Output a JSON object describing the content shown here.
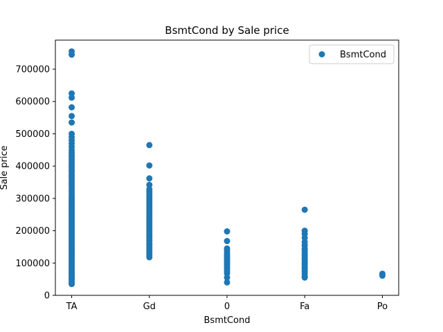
{
  "chart_data": {
    "type": "scatter",
    "title": "BsmtCond by Sale price",
    "xlabel": "BsmtCond",
    "ylabel": "Sale price",
    "categories": [
      "TA",
      "Gd",
      "0",
      "Fa",
      "Po"
    ],
    "ylim": [
      0,
      790000
    ],
    "yticks": [
      0,
      100000,
      200000,
      300000,
      400000,
      500000,
      600000,
      700000
    ],
    "grid": false,
    "legend": {
      "placement": "top-right",
      "entries": [
        "BsmtCond"
      ]
    },
    "color": "#1f77b4",
    "series": [
      {
        "name": "BsmtCond",
        "points": [
          {
            "x": "TA",
            "values": [
              35000,
              38000,
              42000,
              48000,
              52000,
              57000,
              62000,
              67000,
              72000,
              77000,
              82000,
              87000,
              92000,
              97000,
              102000,
              107000,
              112000,
              117000,
              122000,
              127000,
              132000,
              137000,
              142000,
              147000,
              152000,
              157000,
              162000,
              167000,
              172000,
              177000,
              182000,
              187000,
              192000,
              197000,
              202000,
              207000,
              212000,
              217000,
              222000,
              227000,
              232000,
              237000,
              242000,
              247000,
              252000,
              257000,
              262000,
              267000,
              272000,
              277000,
              282000,
              287000,
              292000,
              297000,
              302000,
              308000,
              315000,
              322000,
              330000,
              338000,
              345000,
              352000,
              360000,
              368000,
              375000,
              383000,
              390000,
              398000,
              405000,
              412000,
              420000,
              428000,
              435000,
              442000,
              450000,
              460000,
              470000,
              480000,
              490000,
              500000,
              535000,
              555000,
              582000,
              612000,
              625000,
              745000,
              755000
            ]
          },
          {
            "x": "Gd",
            "values": [
              118000,
              125000,
              132000,
              140000,
              147000,
              155000,
              162000,
              170000,
              178000,
              185000,
              192000,
              200000,
              208000,
              215000,
              222000,
              230000,
              238000,
              245000,
              252000,
              260000,
              268000,
              275000,
              283000,
              290000,
              298000,
              305000,
              312000,
              320000,
              328000,
              342000,
              362000,
              402000,
              465000
            ]
          },
          {
            "x": "0",
            "values": [
              40000,
              55000,
              68000,
              75000,
              82000,
              88000,
              94000,
              100000,
              105000,
              110000,
              115000,
              120000,
              125000,
              132000,
              140000,
              145000,
              168000,
              198000
            ]
          },
          {
            "x": "Fa",
            "values": [
              55000,
              60000,
              68000,
              75000,
              82000,
              88000,
              95000,
              100000,
              106000,
              112000,
              118000,
              125000,
              132000,
              140000,
              145000,
              155000,
              165000,
              178000,
              190000,
              200000,
              265000
            ]
          },
          {
            "x": "Po",
            "values": [
              61000,
              67000
            ]
          }
        ]
      }
    ]
  }
}
